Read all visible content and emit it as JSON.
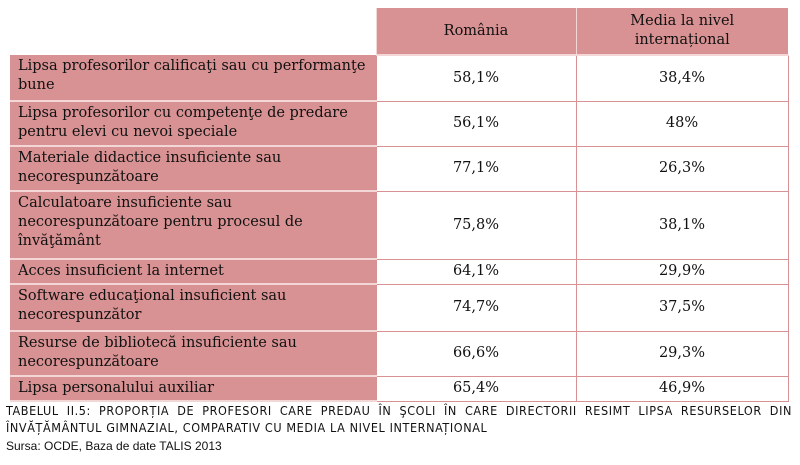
{
  "table": {
    "headers": [
      "",
      "România",
      "Media la nivel internațional"
    ],
    "rows": [
      {
        "label": "Lipsa profesorilor calificaţi sau cu performanţe bune",
        "romania": "58,1%",
        "international": "38,4%"
      },
      {
        "label": "Lipsa profesorilor cu competenţe de predare pentru elevi cu nevoi speciale",
        "romania": "56,1%",
        "international": "48%"
      },
      {
        "label": "Materiale didactice insuficiente sau necorespunzătoare",
        "romania": "77,1%",
        "international": "26,3%"
      },
      {
        "label": "Calculatoare insuficiente sau necorespunzătoare pentru procesul de învăţământ",
        "romania": "75,8%",
        "international": "38,1%"
      },
      {
        "label": "Acces insuficient la internet",
        "romania": "64,1%",
        "international": "29,9%"
      },
      {
        "label": "Software educaţional insuficient sau necorespunzător",
        "romania": "74,7%",
        "international": "37,5%"
      },
      {
        "label": "Resurse de bibliotecă insuficiente sau necorespunzătoare",
        "romania": "66,6%",
        "international": "29,3%"
      },
      {
        "label": "Lipsa personalului auxiliar",
        "romania": "65,4%",
        "international": "46,9%"
      }
    ]
  },
  "caption": "TABELUL II.5: PROPORȚIA DE PROFESORI CARE PREDAU ÎN ŞCOLI ÎN CARE DIRECTORII RESIMT LIPSA RESURSELOR DIN ÎNVĂȚĂMÂNTUL GIMNAZIAL, COMPARATIV CU MEDIA LA NIVEL INTERNAȚIONAL",
  "source": "Sursa: OCDE, Baza de date TALIS 2013",
  "colors": {
    "header_fill": "#d99293"
  }
}
